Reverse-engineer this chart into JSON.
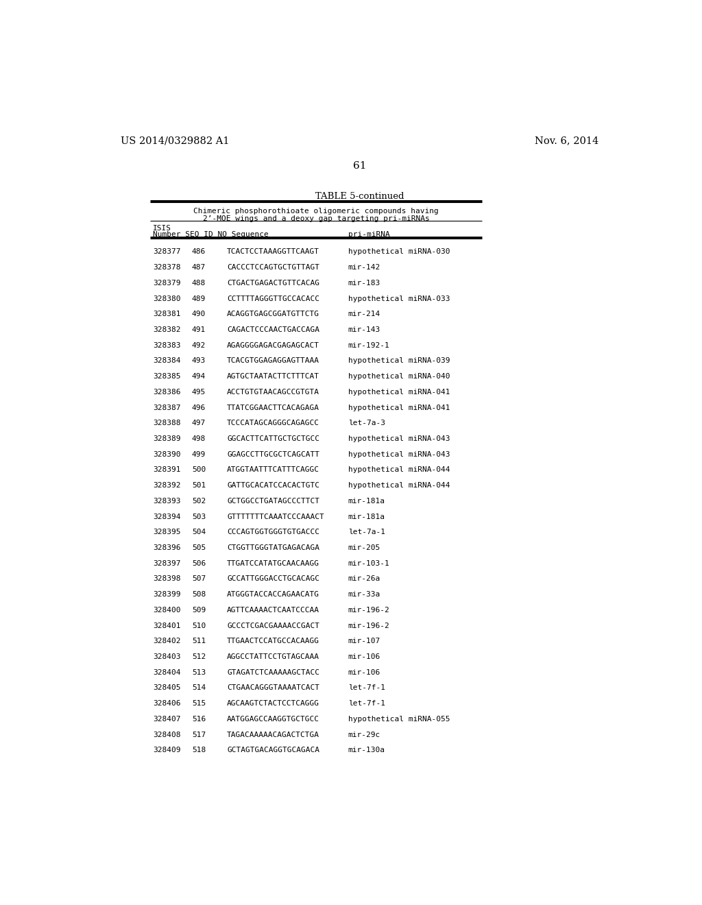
{
  "patent_left": "US 2014/0329882 A1",
  "patent_right": "Nov. 6, 2014",
  "page_number": "61",
  "table_title": "TABLE 5-continued",
  "table_subtitle1": "Chimeric phosphorothioate oligomeric compounds having",
  "table_subtitle2": "2’-MOE wings and a deoxy gap targeting pri-miRNAs",
  "header_isis": "ISIS",
  "header_row2": "Number SEQ ID NO Sequence",
  "header_primiRNA": "pri-miRNA",
  "rows": [
    [
      "328377",
      "486",
      "TCACTCCTAAAGGTTCAAGT",
      "hypothetical miRNA-030"
    ],
    [
      "328378",
      "487",
      "CACCCTCCAGTGCTGTTAGT",
      "mir-142"
    ],
    [
      "328379",
      "488",
      "CTGACTGAGACTGTTCACAG",
      "mir-183"
    ],
    [
      "328380",
      "489",
      "CCTTTTAGGGTTGCCACACC",
      "hypothetical miRNA-033"
    ],
    [
      "328381",
      "490",
      "ACAGGTGAGCGGATGTTCTG",
      "mir-214"
    ],
    [
      "328382",
      "491",
      "CAGACTCCCAACTGACCAGA",
      "mir-143"
    ],
    [
      "328383",
      "492",
      "AGAGGGGAGACGAGAGCACT",
      "mir-192-1"
    ],
    [
      "328384",
      "493",
      "TCACGTGGAGAGGAGTTAAA",
      "hypothetical miRNA-039"
    ],
    [
      "328385",
      "494",
      "AGTGCTAATACTTCTTTCAT",
      "hypothetical miRNA-040"
    ],
    [
      "328386",
      "495",
      "ACCTGTGTAACAGCCGTGTA",
      "hypothetical miRNA-041"
    ],
    [
      "328387",
      "496",
      "TTATCGGAACTTCACAGAGA",
      "hypothetical miRNA-041"
    ],
    [
      "328388",
      "497",
      "TCCCATAGCAGGGCAGAGCC",
      "let-7a-3"
    ],
    [
      "328389",
      "498",
      "GGCACTTCATTGCTGCTGCC",
      "hypothetical miRNA-043"
    ],
    [
      "328390",
      "499",
      "GGAGCCTTGCGCTCAGCATT",
      "hypothetical miRNA-043"
    ],
    [
      "328391",
      "500",
      "ATGGTAATTTCATTTCAGGC",
      "hypothetical miRNA-044"
    ],
    [
      "328392",
      "501",
      "GATTGCACATCCACACTGTC",
      "hypothetical miRNA-044"
    ],
    [
      "328393",
      "502",
      "GCTGGCCTGATAGCCCTTCT",
      "mir-181a"
    ],
    [
      "328394",
      "503",
      "GTTTTTTTCAAATCCCAAACT",
      "mir-181a"
    ],
    [
      "328395",
      "504",
      "CCCAGTGGTGGGTGTGACCC",
      "let-7a-1"
    ],
    [
      "328396",
      "505",
      "CTGGTTGGGTATGAGACAGA",
      "mir-205"
    ],
    [
      "328397",
      "506",
      "TTGATCCATATGCAACAAGG",
      "mir-103-1"
    ],
    [
      "328398",
      "507",
      "GCCATTGGGACCTGCACAGC",
      "mir-26a"
    ],
    [
      "328399",
      "508",
      "ATGGGTACCACCAGAACATG",
      "mir-33a"
    ],
    [
      "328400",
      "509",
      "AGTTCAAAACTCAATCCCAA",
      "mir-196-2"
    ],
    [
      "328401",
      "510",
      "GCCCTCGACGAAAACCGACT",
      "mir-196-2"
    ],
    [
      "328402",
      "511",
      "TTGAACTCCATGCCACAAGG",
      "mir-107"
    ],
    [
      "328403",
      "512",
      "AGGCCTATTCCTGTAGCAAA",
      "mir-106"
    ],
    [
      "328404",
      "513",
      "GTAGATCTCAAAAAGCTACC",
      "mir-106"
    ],
    [
      "328405",
      "514",
      "CTGAACAGGGTAAAATCACT",
      "let-7f-1"
    ],
    [
      "328406",
      "515",
      "AGCAAGTCTACTCCTCAGGG",
      "let-7f-1"
    ],
    [
      "328407",
      "516",
      "AATGGAGCCAAGGTGCTGCC",
      "hypothetical miRNA-055"
    ],
    [
      "328408",
      "517",
      "TAGACAAAAACAGACTCTGA",
      "mir-29c"
    ],
    [
      "328409",
      "518",
      "GCTAGTGACAGGTGCAGACA",
      "mir-130a"
    ]
  ],
  "bg_color": "#ffffff",
  "text_color": "#000000"
}
